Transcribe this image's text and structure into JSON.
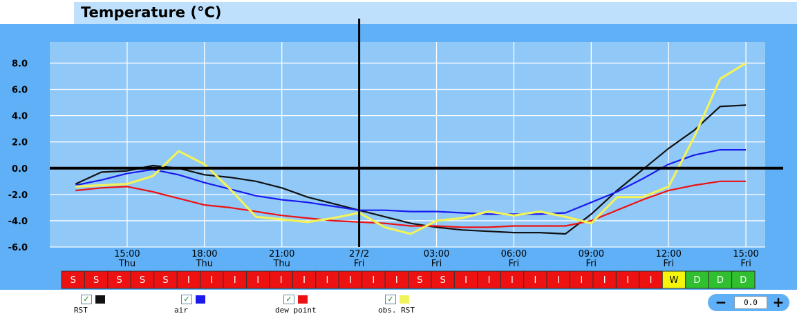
{
  "title": "Temperature (°C)",
  "chart_data": {
    "type": "line",
    "ylim": [
      -6.0,
      9.6
    ],
    "y_ticks": [
      "8.0",
      "6.0",
      "4.0",
      "2.0",
      "0.0",
      "-2.0",
      "-4.0",
      "-6.0"
    ],
    "y_tick_values": [
      8,
      6,
      4,
      2,
      0,
      -2,
      -4,
      -6
    ],
    "x_range": [
      "26/2 12:00",
      "27/2 15:00"
    ],
    "x_ticks": [
      {
        "time": "15:00",
        "day": "Thu"
      },
      {
        "time": "18:00",
        "day": "Thu"
      },
      {
        "time": "21:00",
        "day": "Thu"
      },
      {
        "time": "27/2",
        "day": "Fri"
      },
      {
        "time": "03:00",
        "day": "Fri"
      },
      {
        "time": "06:00",
        "day": "Fri"
      },
      {
        "time": "09:00",
        "day": "Fri"
      },
      {
        "time": "12:00",
        "day": "Fri"
      },
      {
        "time": "15:00",
        "day": "Fri"
      }
    ],
    "x_tick_dates": [
      "26/2 15:00",
      "26/2 18:00",
      "26/2 21:00",
      "27/2 00:00",
      "27/2 03:00",
      "27/2 06:00",
      "27/2 09:00",
      "27/2 12:00",
      "27/2 15:00"
    ],
    "current_time": "27/2 00:00",
    "zero_line": 0,
    "grid": true,
    "series": [
      {
        "name": "RST",
        "color": "#111111",
        "x": [
          "26/2 13:00",
          "26/2 14:00",
          "26/2 15:00",
          "26/2 16:00",
          "26/2 17:00",
          "26/2 18:00",
          "26/2 19:00",
          "26/2 20:00",
          "26/2 21:00",
          "26/2 22:00",
          "26/2 23:00",
          "27/2 00:00",
          "27/2 01:00",
          "27/2 02:00",
          "27/2 03:00",
          "27/2 04:00",
          "27/2 05:00",
          "27/2 06:00",
          "27/2 07:00",
          "27/2 08:00",
          "27/2 09:00",
          "27/2 10:00",
          "27/2 11:00",
          "27/2 12:00",
          "27/2 13:00",
          "27/2 14:00",
          "27/2 15:00"
        ],
        "values": [
          -1.2,
          -0.3,
          -0.2,
          0.2,
          0.0,
          -0.5,
          -0.7,
          -1.0,
          -1.5,
          -2.2,
          -2.7,
          -3.2,
          -3.7,
          -4.2,
          -4.5,
          -4.7,
          -4.8,
          -4.9,
          -4.9,
          -5.0,
          -3.5,
          -1.7,
          -0.1,
          1.5,
          2.9,
          4.7,
          4.8
        ]
      },
      {
        "name": "air",
        "color": "#1a1aee",
        "x": [
          "26/2 13:00",
          "26/2 14:00",
          "26/2 15:00",
          "26/2 16:00",
          "26/2 17:00",
          "26/2 18:00",
          "26/2 19:00",
          "26/2 20:00",
          "26/2 21:00",
          "26/2 22:00",
          "26/2 23:00",
          "27/2 00:00",
          "27/2 01:00",
          "27/2 02:00",
          "27/2 03:00",
          "27/2 04:00",
          "27/2 05:00",
          "27/2 06:00",
          "27/2 07:00",
          "27/2 08:00",
          "27/2 09:00",
          "27/2 10:00",
          "27/2 11:00",
          "27/2 12:00",
          "27/2 13:00",
          "27/2 14:00",
          "27/2 15:00"
        ],
        "values": [
          -1.3,
          -0.9,
          -0.4,
          -0.1,
          -0.5,
          -1.1,
          -1.6,
          -2.1,
          -2.4,
          -2.6,
          -2.9,
          -3.2,
          -3.2,
          -3.3,
          -3.3,
          -3.4,
          -3.5,
          -3.5,
          -3.5,
          -3.4,
          -2.6,
          -1.8,
          -0.8,
          0.3,
          1.0,
          1.4,
          1.4
        ]
      },
      {
        "name": "dew point",
        "color": "#ee1111",
        "x": [
          "26/2 13:00",
          "26/2 14:00",
          "26/2 15:00",
          "26/2 16:00",
          "26/2 17:00",
          "26/2 18:00",
          "26/2 19:00",
          "26/2 20:00",
          "26/2 21:00",
          "26/2 22:00",
          "26/2 23:00",
          "27/2 00:00",
          "27/2 01:00",
          "27/2 02:00",
          "27/2 03:00",
          "27/2 04:00",
          "27/2 05:00",
          "27/2 06:00",
          "27/2 07:00",
          "27/2 08:00",
          "27/2 09:00",
          "27/2 10:00",
          "27/2 11:00",
          "27/2 12:00",
          "27/2 13:00",
          "27/2 14:00",
          "27/2 15:00"
        ],
        "values": [
          -1.7,
          -1.5,
          -1.4,
          -1.8,
          -2.3,
          -2.8,
          -3.0,
          -3.3,
          -3.6,
          -3.8,
          -4.0,
          -4.1,
          -4.2,
          -4.4,
          -4.4,
          -4.5,
          -4.5,
          -4.4,
          -4.4,
          -4.4,
          -4.0,
          -3.2,
          -2.4,
          -1.7,
          -1.3,
          -1.0,
          -1.0
        ]
      },
      {
        "name": "obs. RST",
        "color": "#f2f25a",
        "x": [
          "26/2 13:00",
          "26/2 14:00",
          "26/2 15:00",
          "26/2 16:00",
          "26/2 17:00",
          "26/2 18:00",
          "26/2 19:00",
          "26/2 20:00",
          "26/2 21:00",
          "26/2 22:00",
          "26/2 23:00",
          "27/2 00:00",
          "27/2 01:00",
          "27/2 02:00",
          "27/2 03:00",
          "27/2 04:00",
          "27/2 05:00",
          "27/2 06:00",
          "27/2 07:00",
          "27/2 08:00",
          "27/2 09:00",
          "27/2 10:00",
          "27/2 11:00",
          "27/2 12:00",
          "27/2 13:00",
          "27/2 14:00",
          "27/2 15:00"
        ],
        "values": [
          -1.4,
          -1.3,
          -1.2,
          -0.6,
          1.3,
          0.3,
          -1.6,
          -3.7,
          -3.9,
          -4.1,
          -3.8,
          -3.4,
          -4.5,
          -5.0,
          -4.0,
          -3.8,
          -3.3,
          -3.6,
          -3.3,
          -3.7,
          -4.2,
          -2.2,
          -2.2,
          -1.4,
          2.4,
          6.8,
          8.0
        ]
      }
    ]
  },
  "road_states": {
    "colors": {
      "S": "#ee1111",
      "I": "#ee1111",
      "W": "#f5f50c",
      "D": "#2fbf2f"
    },
    "cells": [
      "S",
      "S",
      "S",
      "S",
      "S",
      "I",
      "I",
      "I",
      "I",
      "I",
      "I",
      "I",
      "I",
      "I",
      "I",
      "S",
      "S",
      "I",
      "I",
      "I",
      "I",
      "I",
      "I",
      "I",
      "I",
      "I",
      "W",
      "D",
      "D",
      "D"
    ]
  },
  "legend": [
    {
      "label": "RST",
      "color": "#111111",
      "checked": "✓"
    },
    {
      "label": "air",
      "color": "#1a1aee",
      "checked": "✓"
    },
    {
      "label": "dew point",
      "color": "#ee1111",
      "checked": "✓"
    },
    {
      "label": "obs. RST",
      "color": "#f2f25a",
      "checked": "✓"
    }
  ],
  "zoom": {
    "minus": "−",
    "value": "0.0",
    "plus": "+"
  }
}
